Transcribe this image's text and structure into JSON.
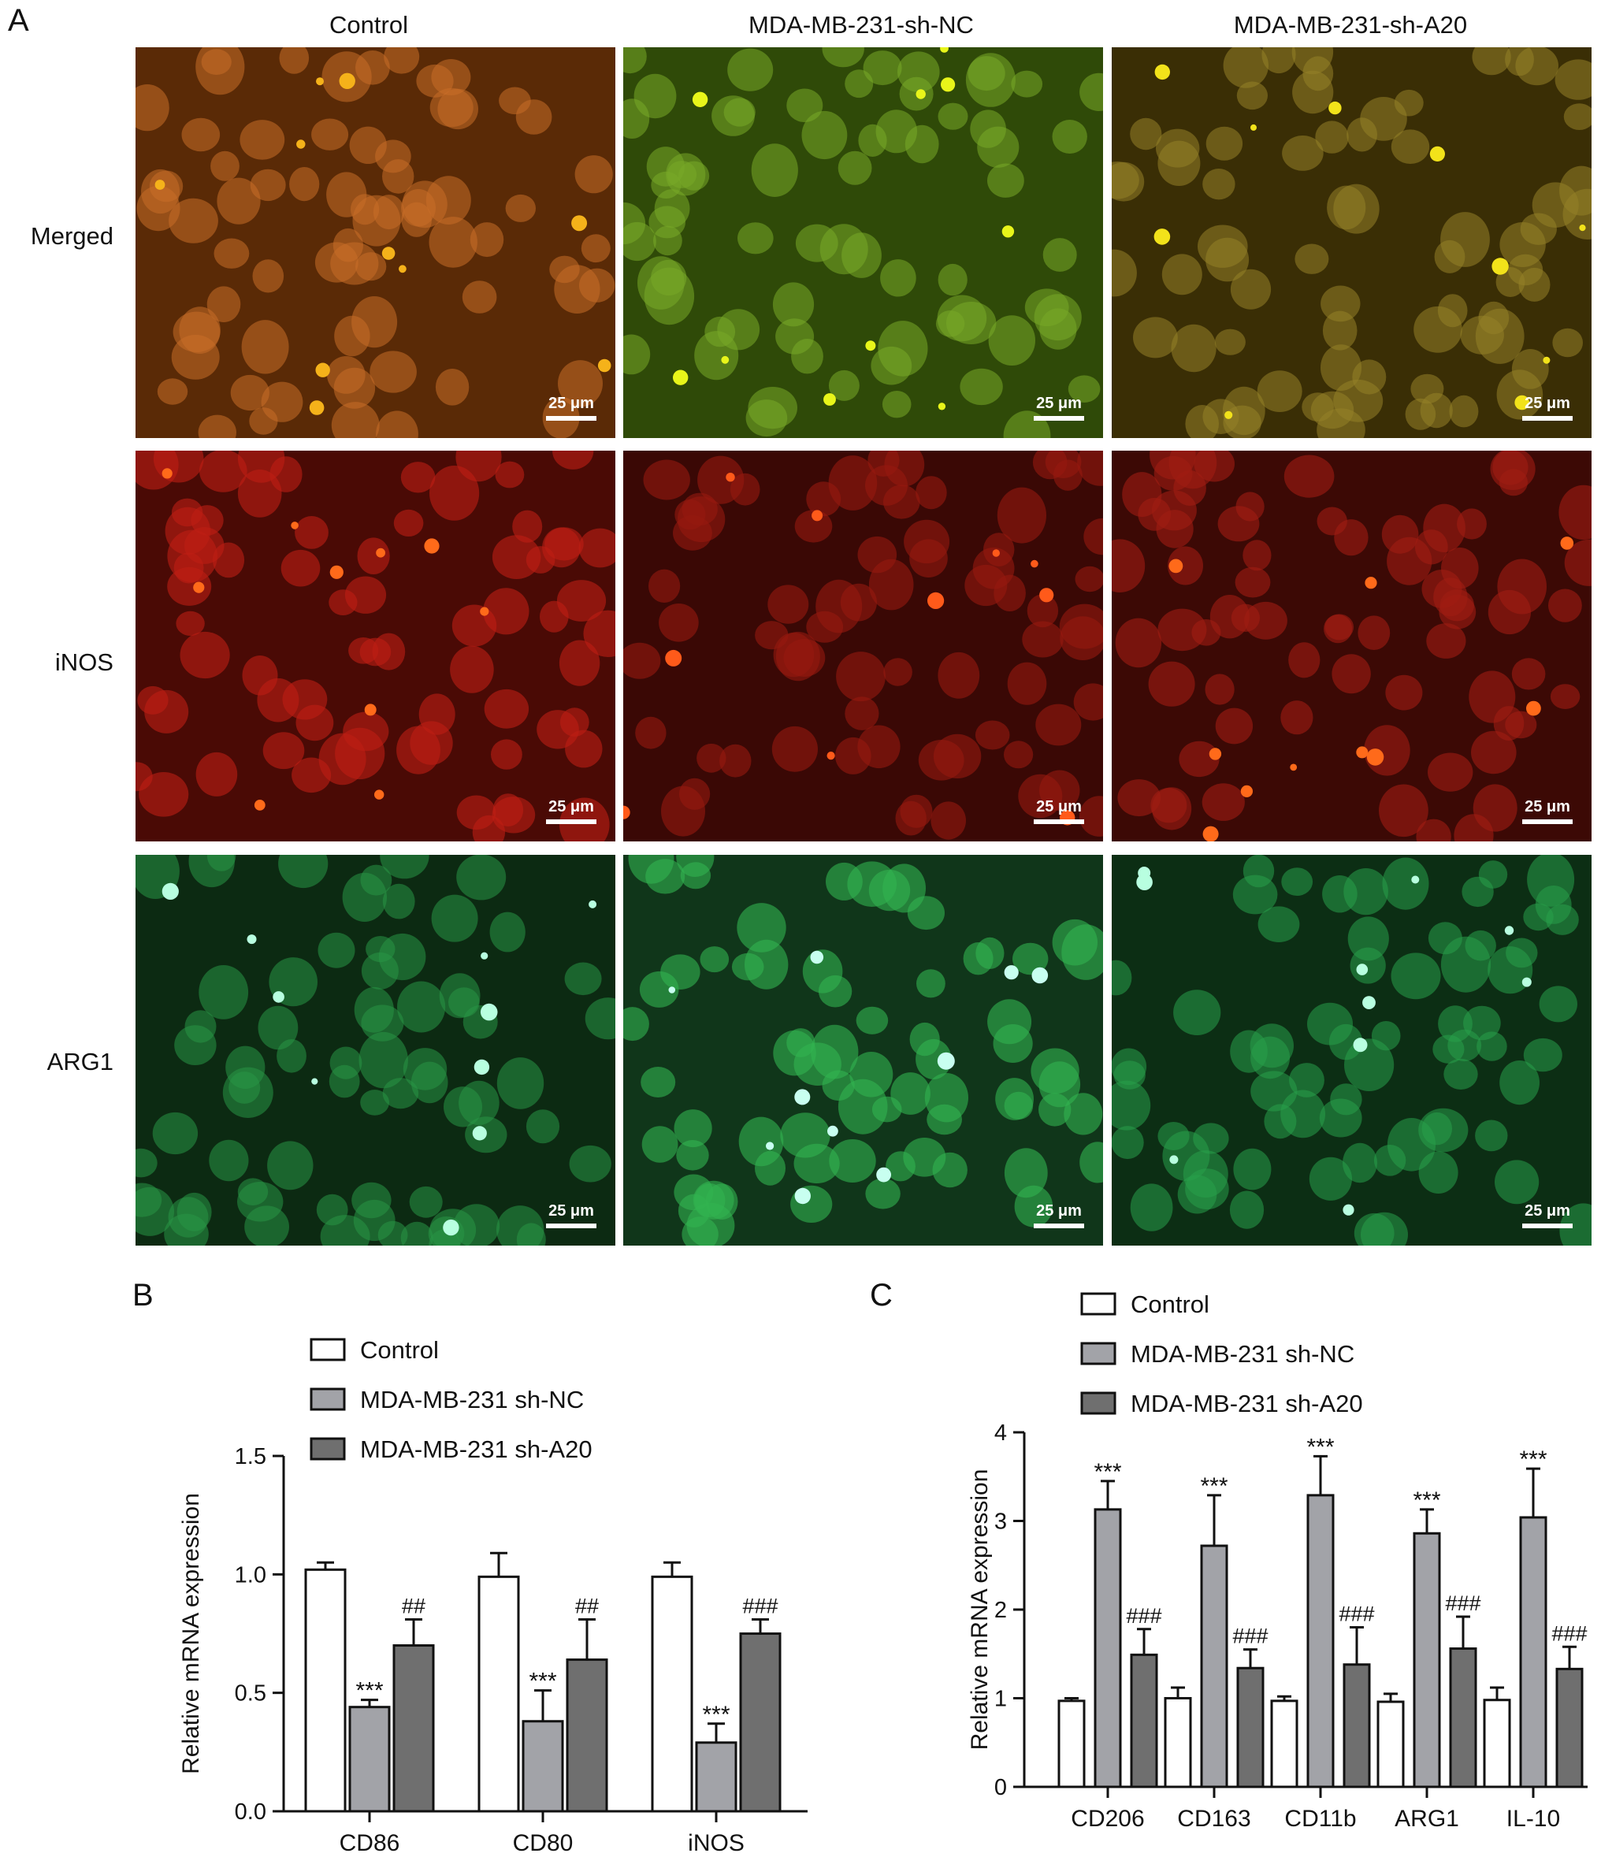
{
  "figure": {
    "panel_a": {
      "letter": "A",
      "columns": [
        "Control",
        "MDA-MB-231-sh-NC",
        "MDA-MB-231-sh-A20"
      ],
      "rows": [
        "Merged",
        "iNOS",
        "ARG1"
      ],
      "scale_bar_label": "25 μm",
      "channel_colors": {
        "Merged": [
          "#5a2a06",
          "#2f4a08",
          "#3a2e05"
        ],
        "iNOS": [
          "#4a0a05",
          "#3a0805",
          "#3c0905"
        ],
        "ARG1": [
          "#0c2a12",
          "#10361a",
          "#0c2e14"
        ]
      }
    },
    "panel_b": {
      "letter": "B"
    },
    "panel_c": {
      "letter": "C"
    }
  },
  "chart_data": [
    {
      "type": "bar",
      "panel": "B",
      "ylabel": "Relative mRNA expression",
      "ylim": [
        0,
        1.5
      ],
      "yticks": [
        "0.0",
        "0.5",
        "1.0",
        "1.5"
      ],
      "categories": [
        "CD86",
        "CD80",
        "iNOS"
      ],
      "series": [
        {
          "name": "Control",
          "color": "#ffffff",
          "values": [
            1.02,
            0.99,
            0.99
          ],
          "errors": [
            0.03,
            0.1,
            0.06
          ],
          "annotations": [
            "",
            "",
            ""
          ]
        },
        {
          "name": "MDA-MB-231 sh-NC",
          "color": "#a2a3a8",
          "values": [
            0.44,
            0.38,
            0.29
          ],
          "errors": [
            0.03,
            0.13,
            0.08
          ],
          "annotations": [
            "***",
            "***",
            "***"
          ]
        },
        {
          "name": "MDA-MB-231 sh-A20",
          "color": "#6f6f6f",
          "values": [
            0.7,
            0.64,
            0.75
          ],
          "errors": [
            0.11,
            0.17,
            0.06
          ],
          "annotations": [
            "##",
            "##",
            "###"
          ]
        }
      ],
      "legend_position": "top-left"
    },
    {
      "type": "bar",
      "panel": "C",
      "ylabel": "Relative mRNA expression",
      "ylim": [
        0,
        4
      ],
      "yticks": [
        "0",
        "1",
        "2",
        "3",
        "4"
      ],
      "categories": [
        "CD206",
        "CD163",
        "CD11b",
        "ARG1",
        "IL-10"
      ],
      "series": [
        {
          "name": "Control",
          "color": "#ffffff",
          "values": [
            0.97,
            1.0,
            0.97,
            0.96,
            0.98
          ],
          "errors": [
            0.03,
            0.12,
            0.05,
            0.09,
            0.14
          ],
          "annotations": [
            "",
            "",
            "",
            "",
            ""
          ]
        },
        {
          "name": "MDA-MB-231 sh-NC",
          "color": "#a2a3a8",
          "values": [
            3.13,
            2.72,
            3.29,
            2.86,
            3.04
          ],
          "errors": [
            0.32,
            0.57,
            0.44,
            0.27,
            0.55
          ],
          "annotations": [
            "***",
            "***",
            "***",
            "***",
            "***"
          ]
        },
        {
          "name": "MDA-MB-231 sh-A20",
          "color": "#6f6f6f",
          "values": [
            1.49,
            1.34,
            1.38,
            1.56,
            1.33
          ],
          "errors": [
            0.29,
            0.21,
            0.42,
            0.36,
            0.25
          ],
          "annotations": [
            "###",
            "###",
            "###",
            "###",
            "###"
          ]
        }
      ],
      "legend_position": "top-left"
    }
  ]
}
